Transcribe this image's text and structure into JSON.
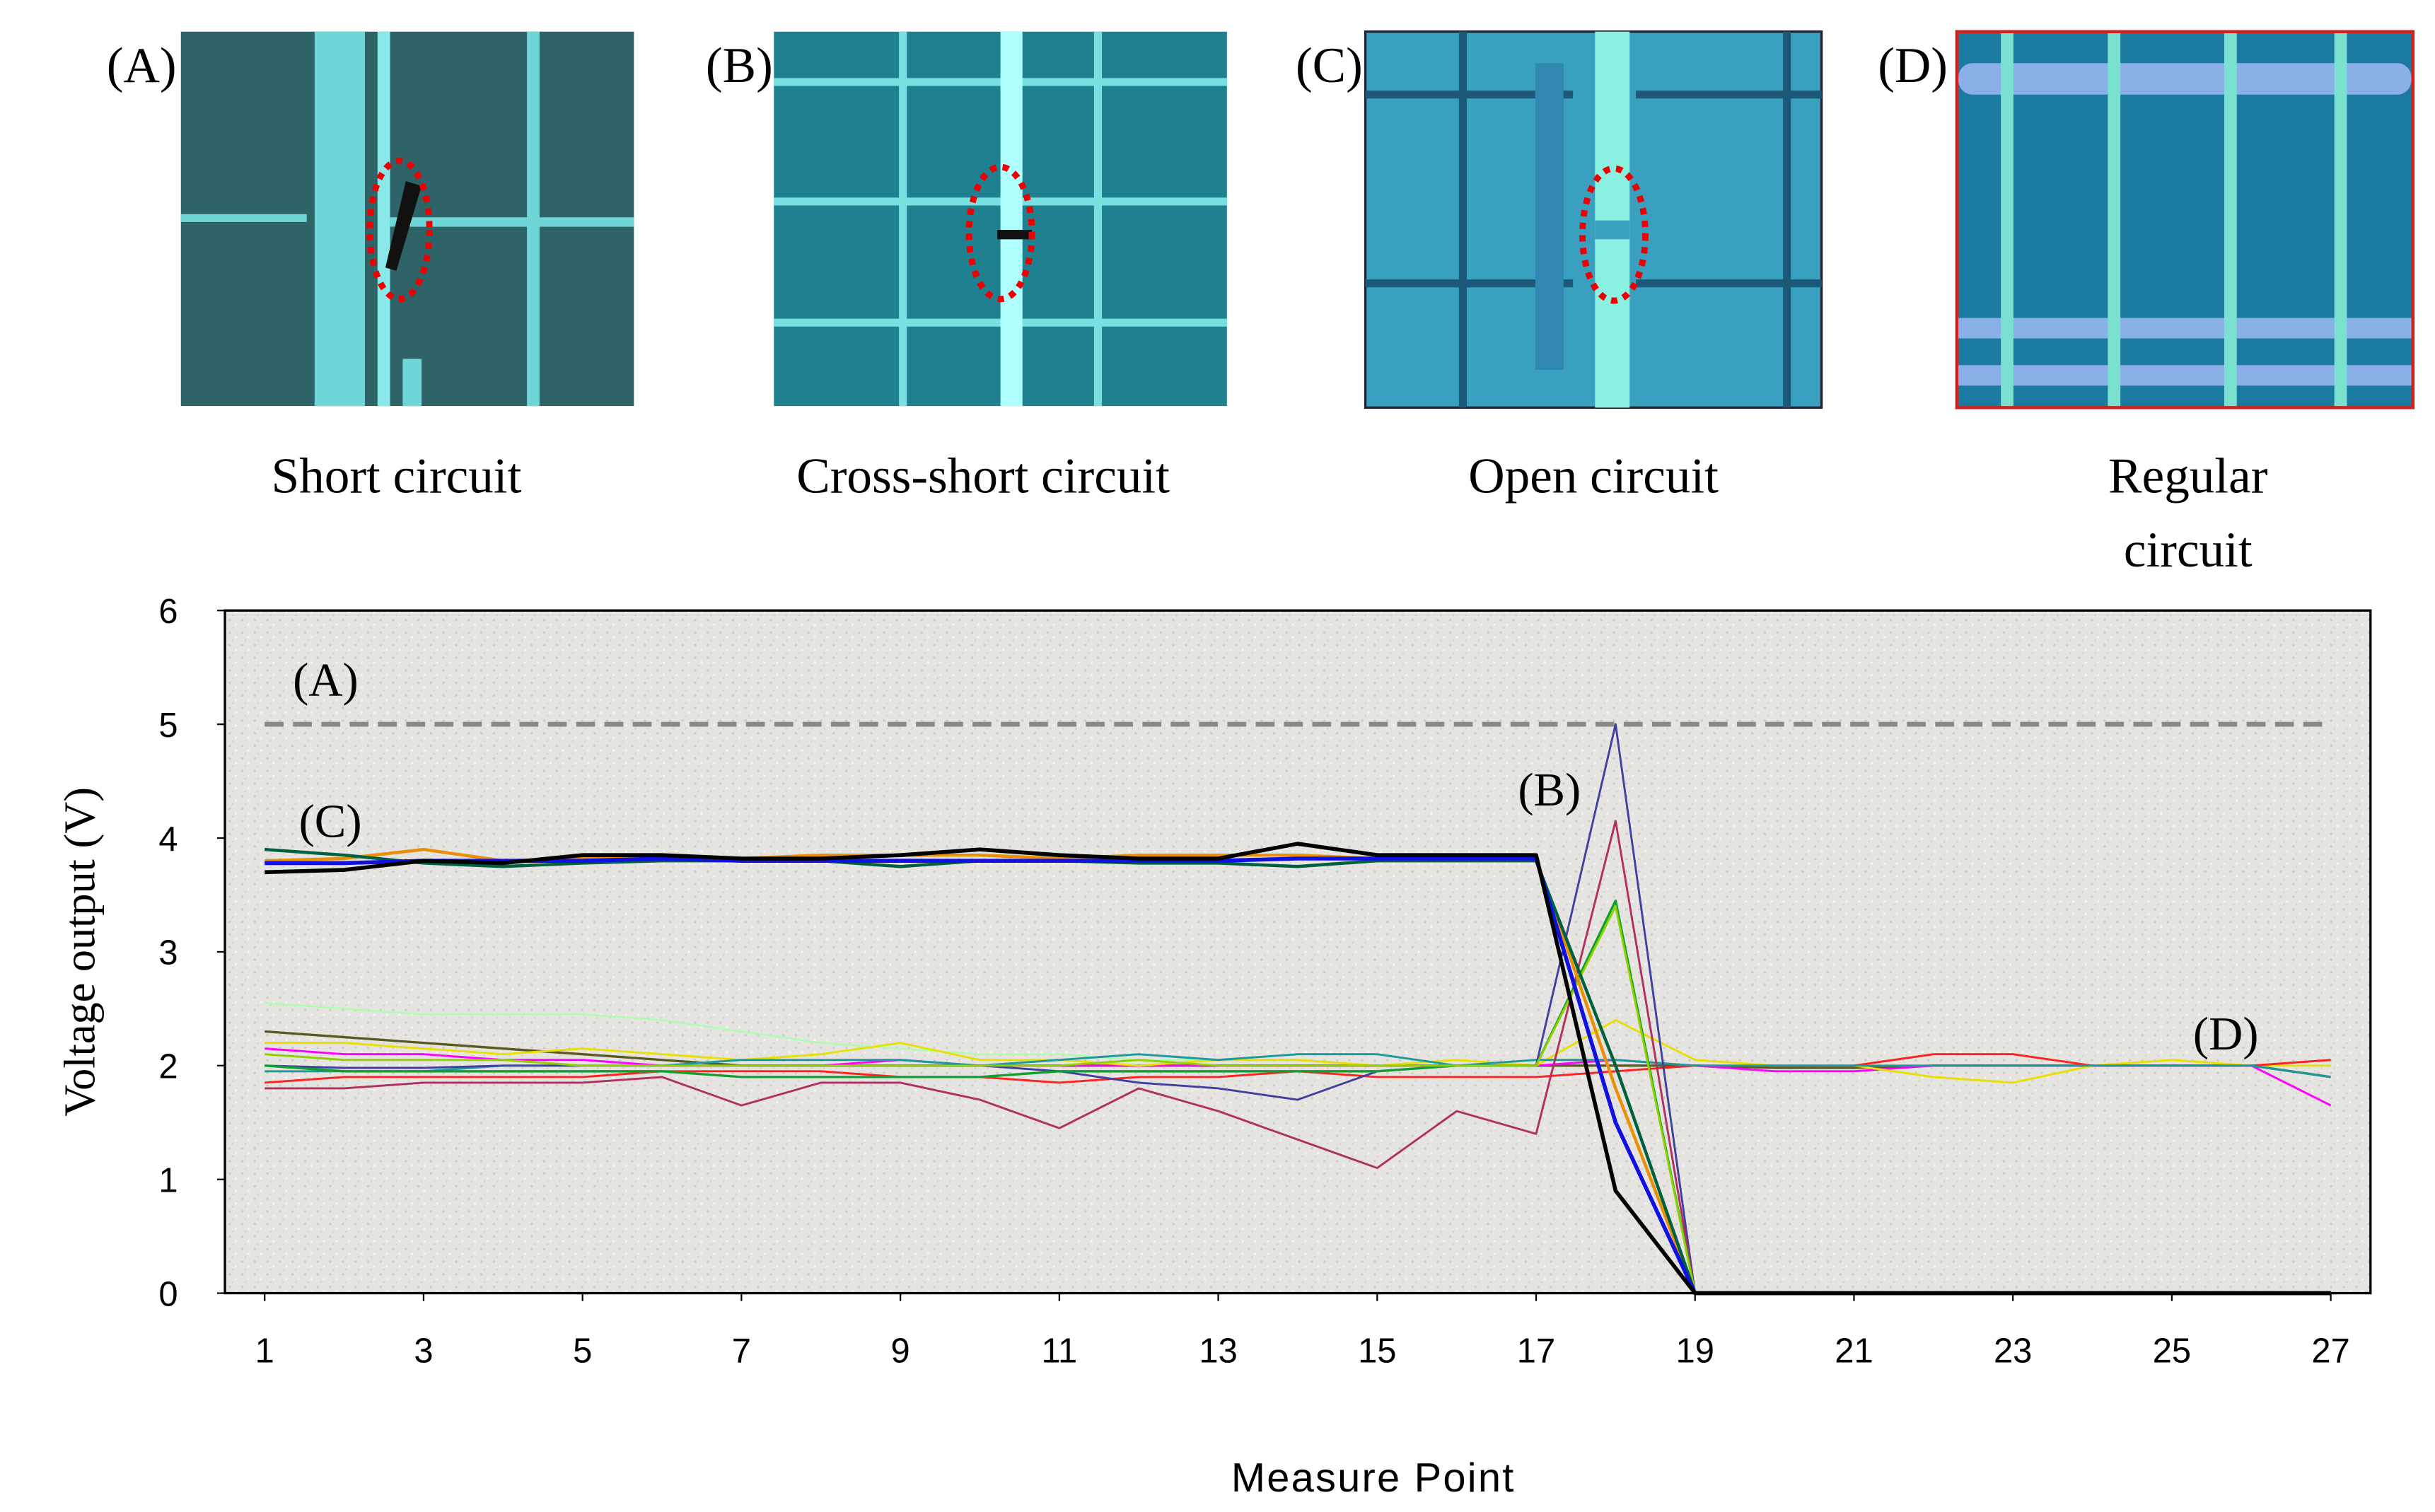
{
  "panels": [
    {
      "tag": "(A)",
      "caption": [
        "Short circuit"
      ]
    },
    {
      "tag": "(B)",
      "caption": [
        "Cross-short circuit"
      ]
    },
    {
      "tag": "(C)",
      "caption": [
        "Open circuit"
      ]
    },
    {
      "tag": "(D)",
      "caption": [
        "Regular",
        "circuit"
      ]
    }
  ],
  "chart_data": {
    "type": "line",
    "xlabel": "Measure Point",
    "ylabel": "Voltage output (V)",
    "x": [
      1,
      2,
      3,
      4,
      5,
      6,
      7,
      8,
      9,
      10,
      11,
      12,
      13,
      14,
      15,
      16,
      17,
      18,
      19,
      20,
      21,
      22,
      23,
      24,
      25,
      26,
      27
    ],
    "xlim": [
      0.5,
      27.5
    ],
    "xticks": [
      1,
      3,
      5,
      7,
      9,
      11,
      13,
      15,
      17,
      19,
      21,
      23,
      25,
      27
    ],
    "ylim": [
      0,
      6
    ],
    "yticks": [
      0,
      1,
      2,
      3,
      4,
      5,
      6
    ],
    "annotations": [
      "(A)",
      "(B)",
      "(C)",
      "(D)"
    ],
    "series": [
      {
        "color": "#888888",
        "width": 3,
        "dashed": true,
        "values": [
          5,
          5,
          5,
          5,
          5,
          5,
          5,
          5,
          5,
          5,
          5,
          5,
          5,
          5,
          5,
          5,
          5,
          5,
          5,
          5,
          5,
          5,
          5,
          5,
          5,
          5,
          5
        ]
      },
      {
        "color": "#aaffaa",
        "width": 1,
        "values": [
          2.55,
          2.5,
          2.45,
          2.45,
          2.45,
          2.4,
          2.3,
          2.2,
          2.15,
          2.1,
          2.1,
          2.05,
          2.05,
          2.05,
          2.0,
          2.0,
          2.0,
          2.0,
          2.0,
          2.0,
          2.0,
          2.0,
          2.0,
          2.0,
          2.0,
          2.0,
          2.0
        ]
      },
      {
        "color": "#5a5a20",
        "width": 1.5,
        "values": [
          2.3,
          2.25,
          2.2,
          2.15,
          2.1,
          2.05,
          2.0,
          2.0,
          2.0,
          2.0,
          2.0,
          2.0,
          2.0,
          2.0,
          2.0,
          2.0,
          2.0,
          2.0,
          2.0,
          1.98,
          1.98,
          2.0,
          2.0,
          2.0,
          2.0,
          2.0,
          1.9
        ]
      },
      {
        "color": "#ff00ff",
        "width": 1.3,
        "values": [
          2.15,
          2.1,
          2.1,
          2.05,
          2.05,
          2.0,
          2.0,
          2.0,
          2.05,
          2.0,
          2.0,
          2.0,
          2.0,
          2.0,
          2.0,
          2.0,
          2.0,
          2.05,
          2.0,
          1.95,
          1.95,
          2.0,
          2.0,
          2.0,
          2.0,
          2.0,
          1.65
        ]
      },
      {
        "color": "#e8e000",
        "width": 1.3,
        "values": [
          2.2,
          2.2,
          2.15,
          2.1,
          2.15,
          2.1,
          2.05,
          2.1,
          2.2,
          2.05,
          2.05,
          2.0,
          2.05,
          2.05,
          2.0,
          2.05,
          2.0,
          2.4,
          2.05,
          2.0,
          2.0,
          1.9,
          1.85,
          2.0,
          2.05,
          2.0,
          2.0
        ]
      },
      {
        "color": "#ff2020",
        "width": 1.3,
        "values": [
          1.85,
          1.9,
          1.9,
          1.9,
          1.9,
          1.95,
          1.95,
          1.95,
          1.9,
          1.9,
          1.85,
          1.9,
          1.9,
          1.95,
          1.9,
          1.9,
          1.9,
          1.95,
          2.0,
          2.0,
          2.0,
          2.1,
          2.1,
          2.0,
          2.0,
          2.0,
          2.05
        ]
      },
      {
        "color": "#1a9a9a",
        "width": 1.3,
        "values": [
          1.95,
          1.95,
          1.95,
          2.0,
          2.0,
          2.0,
          2.05,
          2.05,
          2.05,
          2.0,
          2.05,
          2.1,
          2.05,
          2.1,
          2.1,
          2.0,
          2.05,
          2.05,
          2.0,
          2.0,
          2.0,
          2.0,
          2.0,
          2.0,
          2.0,
          2.0,
          1.9
        ]
      },
      {
        "color": "#4040a0",
        "width": 1.3,
        "values": [
          2.0,
          1.98,
          1.98,
          2.0,
          2.0,
          2.0,
          2.0,
          2.0,
          2.0,
          2.0,
          1.95,
          1.85,
          1.8,
          1.7,
          1.95,
          2.0,
          2.0,
          5.0,
          0,
          0,
          0,
          0,
          0,
          0,
          0,
          0,
          0
        ]
      },
      {
        "color": "#b03060",
        "width": 1.3,
        "values": [
          1.8,
          1.8,
          1.85,
          1.85,
          1.85,
          1.9,
          1.65,
          1.85,
          1.85,
          1.7,
          1.45,
          1.8,
          1.6,
          1.35,
          1.1,
          1.6,
          1.4,
          4.15,
          0,
          0,
          0,
          0,
          0,
          0,
          0,
          0,
          0
        ]
      },
      {
        "color": "#10a030",
        "width": 1.5,
        "values": [
          2.0,
          1.95,
          1.95,
          1.95,
          1.95,
          1.95,
          1.9,
          1.9,
          1.9,
          1.9,
          1.95,
          1.95,
          1.95,
          1.95,
          1.95,
          2.0,
          2.0,
          3.45,
          0,
          0,
          0,
          0,
          0,
          0,
          0,
          0,
          0
        ]
      },
      {
        "color": "#90d000",
        "width": 1.3,
        "values": [
          2.1,
          2.05,
          2.05,
          2.05,
          2.0,
          2.0,
          2.0,
          2.0,
          2.0,
          2.0,
          2.0,
          2.05,
          2.0,
          2.0,
          2.0,
          2.0,
          2.0,
          3.4,
          0,
          0,
          0,
          0,
          0,
          0,
          0,
          0,
          0
        ]
      },
      {
        "color": "#e8900a",
        "width": 2,
        "values": [
          3.8,
          3.82,
          3.9,
          3.8,
          3.82,
          3.85,
          3.82,
          3.85,
          3.85,
          3.85,
          3.82,
          3.85,
          3.85,
          3.85,
          3.82,
          3.82,
          3.82,
          1.8,
          0,
          0,
          0,
          0,
          0,
          0,
          0,
          0,
          0
        ]
      },
      {
        "color": "#006040",
        "width": 2,
        "values": [
          3.9,
          3.85,
          3.78,
          3.75,
          3.78,
          3.8,
          3.8,
          3.8,
          3.75,
          3.8,
          3.8,
          3.78,
          3.78,
          3.75,
          3.8,
          3.8,
          3.8,
          2.0,
          0,
          0,
          0,
          0,
          0,
          0,
          0,
          0,
          0
        ]
      },
      {
        "color": "#1010e0",
        "width": 2.5,
        "values": [
          3.78,
          3.78,
          3.8,
          3.8,
          3.8,
          3.82,
          3.8,
          3.8,
          3.8,
          3.8,
          3.8,
          3.8,
          3.8,
          3.82,
          3.82,
          3.82,
          3.82,
          1.5,
          0,
          0,
          0,
          0,
          0,
          0,
          0,
          0,
          0
        ]
      },
      {
        "color": "#000000",
        "width": 2.5,
        "values": [
          3.7,
          3.72,
          3.8,
          3.78,
          3.85,
          3.85,
          3.82,
          3.82,
          3.85,
          3.9,
          3.85,
          3.82,
          3.82,
          3.95,
          3.85,
          3.85,
          3.85,
          0.9,
          0,
          0,
          0,
          0,
          0,
          0,
          0,
          0,
          0
        ]
      }
    ]
  }
}
